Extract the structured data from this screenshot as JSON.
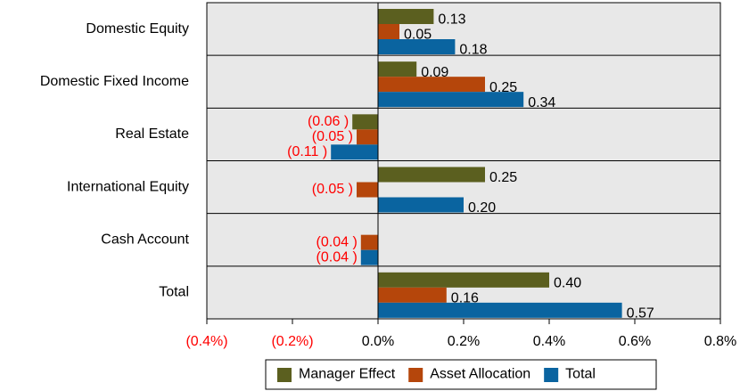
{
  "chart_data": {
    "type": "bar",
    "orientation": "horizontal",
    "categories": [
      "Domestic Equity",
      "Domestic Fixed Income",
      "Real Estate",
      "International Equity",
      "Cash Account",
      "Total"
    ],
    "series": [
      {
        "name": "Manager Effect",
        "color": "#5b5f1f",
        "values": [
          0.13,
          0.09,
          -0.06,
          0.25,
          null,
          0.4
        ],
        "value_labels": [
          "0.13",
          "0.09",
          "(0.06 )",
          "0.25",
          null,
          "0.40"
        ]
      },
      {
        "name": "Asset Allocation",
        "color": "#b5460b",
        "values": [
          0.05,
          0.25,
          -0.05,
          -0.05,
          -0.04,
          0.16
        ],
        "value_labels": [
          "0.05",
          "0.25",
          "(0.05 )",
          "(0.05 )",
          "(0.04 )",
          "0.16"
        ]
      },
      {
        "name": "Total",
        "color": "#0a64a0",
        "values": [
          0.18,
          0.34,
          -0.11,
          0.2,
          -0.04,
          0.57
        ],
        "value_labels": [
          "0.18",
          "0.34",
          "(0.11 )",
          "0.20",
          "(0.04 )",
          "0.57"
        ]
      }
    ],
    "xlim": [
      -0.4,
      0.8
    ],
    "xticks": [
      {
        "value": -0.4,
        "label": "(0.4%)"
      },
      {
        "value": -0.2,
        "label": "(0.2%)"
      },
      {
        "value": 0,
        "label": "0.0%"
      },
      {
        "value": 0.2,
        "label": "0.2%"
      },
      {
        "value": 0.4,
        "label": "0.4%"
      },
      {
        "value": 0.6,
        "label": "0.6%"
      },
      {
        "value": 0.8,
        "label": "0.8%"
      }
    ],
    "legend": "bottom"
  }
}
